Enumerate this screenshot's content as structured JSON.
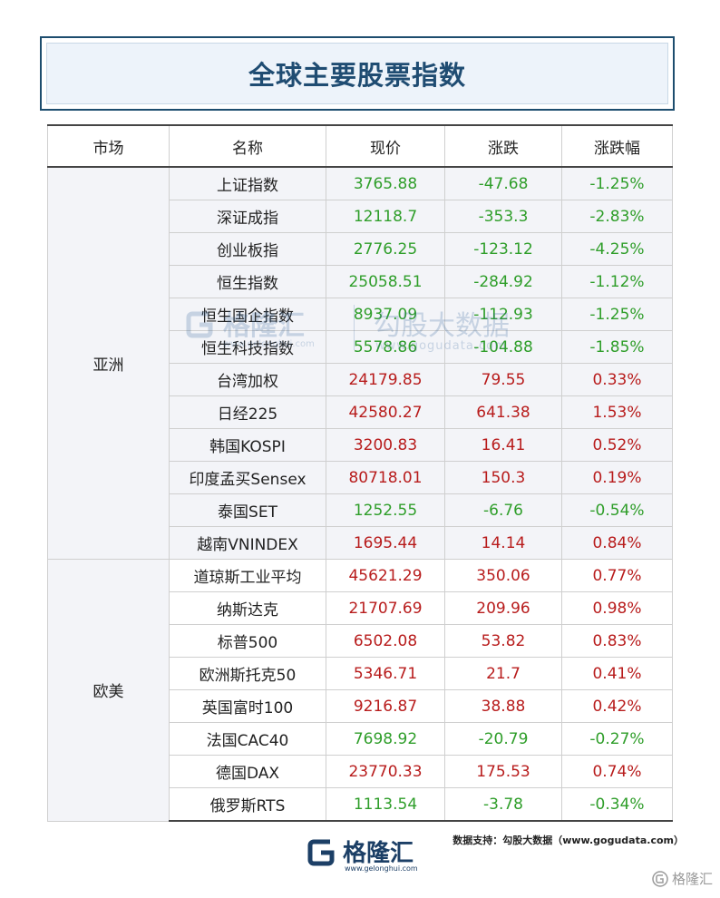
{
  "title": "全球主要股票指数",
  "columns": [
    "市场",
    "名称",
    "现价",
    "涨跌",
    "涨跌幅"
  ],
  "groups": [
    {
      "market": "亚洲",
      "rows": [
        {
          "name": "上证指数",
          "price": "3765.88",
          "change": "-47.68",
          "pct": "-1.25%",
          "dir": "down"
        },
        {
          "name": "深证成指",
          "price": "12118.7",
          "change": "-353.3",
          "pct": "-2.83%",
          "dir": "down"
        },
        {
          "name": "创业板指",
          "price": "2776.25",
          "change": "-123.12",
          "pct": "-4.25%",
          "dir": "down"
        },
        {
          "name": "恒生指数",
          "price": "25058.51",
          "change": "-284.92",
          "pct": "-1.12%",
          "dir": "down"
        },
        {
          "name": "恒生国企指数",
          "price": "8937.09",
          "change": "-112.93",
          "pct": "-1.25%",
          "dir": "down"
        },
        {
          "name": "恒生科技指数",
          "price": "5578.86",
          "change": "-104.88",
          "pct": "-1.85%",
          "dir": "down"
        },
        {
          "name": "台湾加权",
          "price": "24179.85",
          "change": "79.55",
          "pct": "0.33%",
          "dir": "up"
        },
        {
          "name": "日经225",
          "price": "42580.27",
          "change": "641.38",
          "pct": "1.53%",
          "dir": "up"
        },
        {
          "name": "韩国KOSPI",
          "price": "3200.83",
          "change": "16.41",
          "pct": "0.52%",
          "dir": "up"
        },
        {
          "name": "印度孟买Sensex",
          "price": "80718.01",
          "change": "150.3",
          "pct": "0.19%",
          "dir": "up"
        },
        {
          "name": "泰国SET",
          "price": "1252.55",
          "change": "-6.76",
          "pct": "-0.54%",
          "dir": "down"
        },
        {
          "name": "越南VNINDEX",
          "price": "1695.44",
          "change": "14.14",
          "pct": "0.84%",
          "dir": "up"
        }
      ]
    },
    {
      "market": "欧美",
      "rows": [
        {
          "name": "道琼斯工业平均",
          "price": "45621.29",
          "change": "350.06",
          "pct": "0.77%",
          "dir": "up"
        },
        {
          "name": "纳斯达克",
          "price": "21707.69",
          "change": "209.96",
          "pct": "0.98%",
          "dir": "up"
        },
        {
          "name": "标普500",
          "price": "6502.08",
          "change": "53.82",
          "pct": "0.83%",
          "dir": "up"
        },
        {
          "name": "欧洲斯托克50",
          "price": "5346.71",
          "change": "21.7",
          "pct": "0.41%",
          "dir": "up"
        },
        {
          "name": "英国富时100",
          "price": "9216.87",
          "change": "38.88",
          "pct": "0.42%",
          "dir": "up"
        },
        {
          "name": "法国CAC40",
          "price": "7698.92",
          "change": "-20.79",
          "pct": "-0.27%",
          "dir": "down"
        },
        {
          "name": "德国DAX",
          "price": "23770.33",
          "change": "175.53",
          "pct": "0.74%",
          "dir": "up"
        },
        {
          "name": "俄罗斯RTS",
          "price": "1113.54",
          "change": "-3.78",
          "pct": "-0.34%",
          "dir": "down"
        }
      ]
    }
  ],
  "watermark": {
    "brand_cn": "格隆汇",
    "brand_en": "www.gelonghui.com",
    "partner_cn": "勾股大数据",
    "partner_en": "www.gogudata.com"
  },
  "source_note": "数据支持：勾股大数据（www.gogudata.com）",
  "footer": {
    "brand_cn": "格隆汇",
    "brand_en": "www.gelonghui.com"
  },
  "corner_mark": "格隆汇",
  "colors": {
    "up": "#b81c1c",
    "down": "#2f9e2a",
    "title": "#1f4c72"
  },
  "icons": [
    "gelonghui-logo-icon",
    "gelonghui-corner-icon"
  ]
}
